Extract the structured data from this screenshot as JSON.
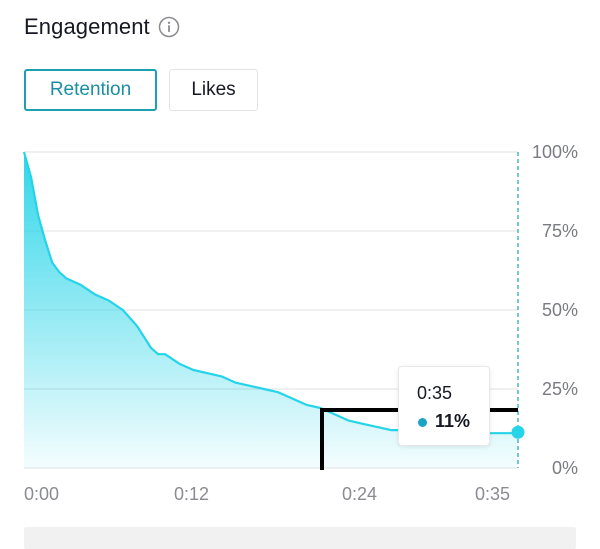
{
  "panel": {
    "title": "Engagement",
    "info_icon": "info-icon"
  },
  "tabs": [
    {
      "label": "Retention",
      "active": true
    },
    {
      "label": "Likes",
      "active": false
    }
  ],
  "tooltip": {
    "time": "0:35",
    "value": "11%"
  },
  "colors": {
    "accent": "#25d4e8",
    "accent_dark": "#1fa0b1",
    "tooltip_dot": "#1ba3c6",
    "grid": "#e6e6e8",
    "text_muted": "#7a7b82"
  },
  "chart_data": {
    "type": "area",
    "title": "",
    "xlabel": "",
    "ylabel": "",
    "x_unit": "seconds",
    "xlim": [
      0,
      35
    ],
    "ylim": [
      0,
      100
    ],
    "x_ticks": [
      {
        "value": 0,
        "label": "0:00"
      },
      {
        "value": 12,
        "label": "0:12"
      },
      {
        "value": 24,
        "label": "0:24"
      },
      {
        "value": 35,
        "label": "0:35"
      }
    ],
    "y_ticks": [
      {
        "value": 100,
        "label": "100%"
      },
      {
        "value": 75,
        "label": "75%"
      },
      {
        "value": 50,
        "label": "50%"
      },
      {
        "value": 25,
        "label": "25%"
      },
      {
        "value": 0,
        "label": "0%"
      }
    ],
    "series": [
      {
        "name": "Retention",
        "x": [
          0,
          0.5,
          1,
          1.5,
          2,
          2.5,
          3,
          4,
          5,
          5.5,
          6,
          7,
          8,
          9,
          9.5,
          10,
          11,
          12,
          13,
          14,
          15,
          16,
          17,
          18,
          19,
          20,
          21,
          22,
          23,
          24,
          25,
          26,
          27,
          28,
          29,
          30,
          31,
          32,
          33,
          34,
          35
        ],
        "y": [
          100,
          92,
          80,
          72,
          65,
          62,
          60,
          58,
          55,
          54,
          53,
          50,
          45,
          38,
          36,
          36,
          33,
          31,
          30,
          29,
          27,
          26,
          25,
          24,
          22,
          20,
          19,
          17,
          15,
          14,
          13,
          12,
          12,
          12,
          11,
          11,
          11,
          11,
          11,
          11,
          11
        ]
      }
    ],
    "highlight": {
      "x": 35,
      "y": 11
    }
  }
}
